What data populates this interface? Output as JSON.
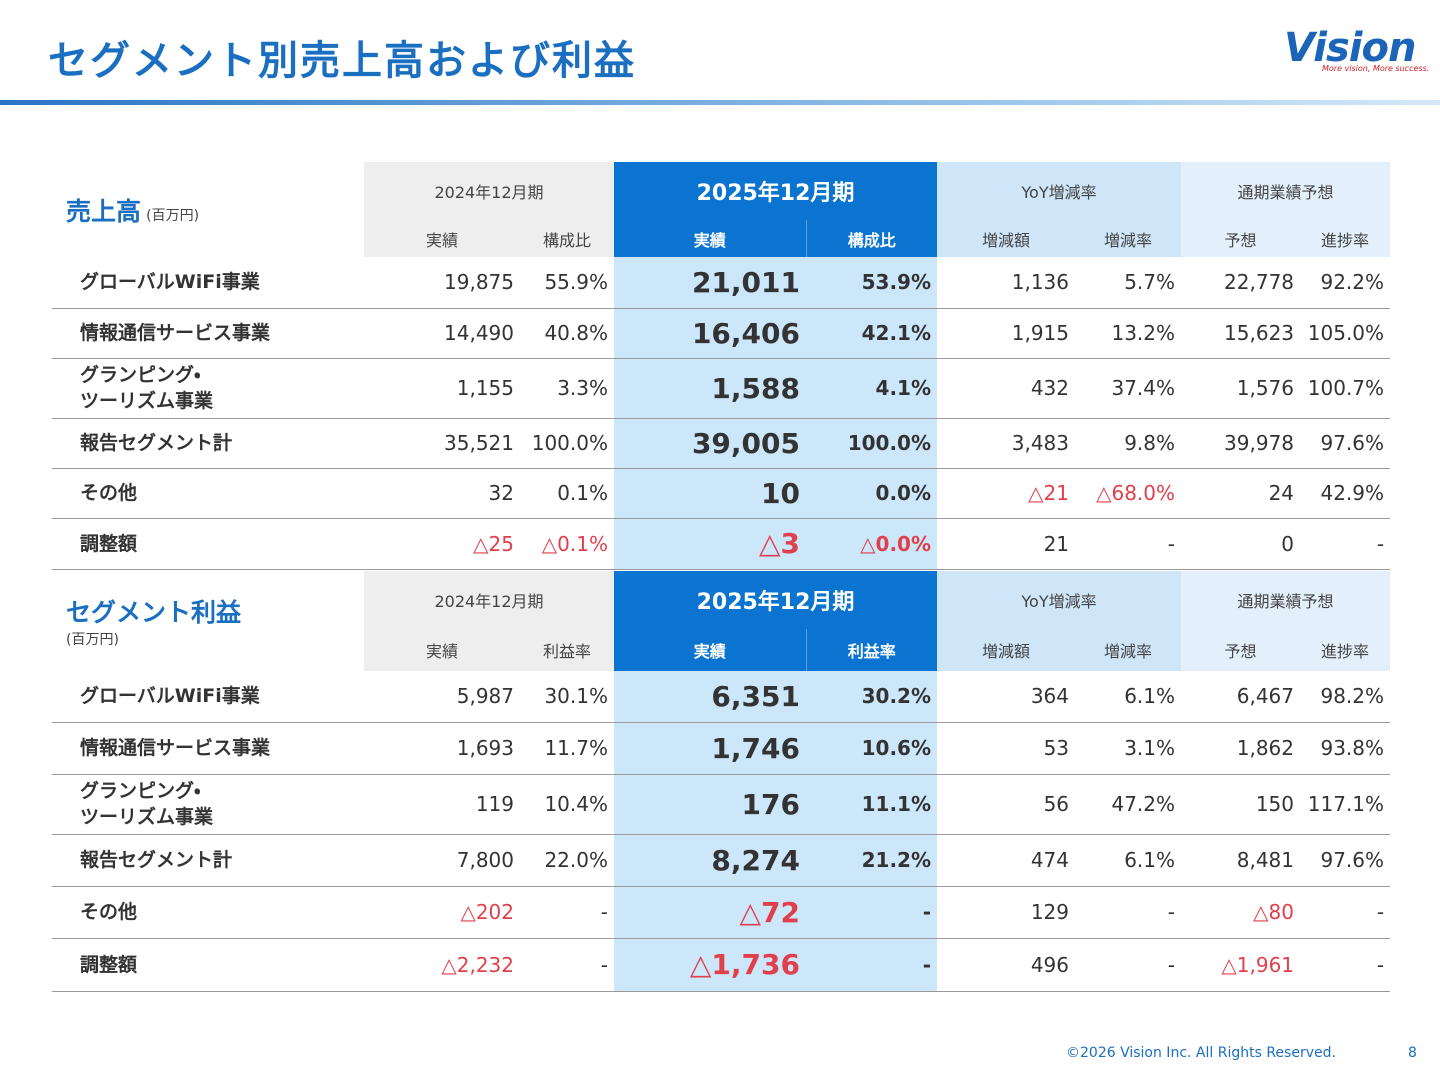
{
  "header": {
    "title": "セグメント別売上高および利益",
    "logo": {
      "text": "Vision",
      "tagline": "More vision, More success."
    }
  },
  "tables": [
    {
      "title": "売上高",
      "unit": "(百万円)",
      "periods": [
        "2024年12月期",
        "2025年12月期",
        "YoY増減率",
        "通期業績予想"
      ],
      "columns": [
        "実績",
        "構成比",
        "実績",
        "構成比",
        "増減額",
        "増減率",
        "予想",
        "進捗率"
      ],
      "rows": [
        {
          "label": "グローバルWiFi事業",
          "cells": [
            "19,875",
            "55.9%",
            "21,011",
            "53.9%",
            "1,136",
            "5.7%",
            "22,778",
            "92.2%"
          ]
        },
        {
          "label": "情報通信サービス事業",
          "cells": [
            "14,490",
            "40.8%",
            "16,406",
            "42.1%",
            "1,915",
            "13.2%",
            "15,623",
            "105.0%"
          ]
        },
        {
          "label": "グランピング・\nツーリズム事業",
          "cells": [
            "1,155",
            "3.3%",
            "1,588",
            "4.1%",
            "432",
            "37.4%",
            "1,576",
            "100.7%"
          ]
        },
        {
          "label": "報告セグメント計",
          "cells": [
            "35,521",
            "100.0%",
            "39,005",
            "100.0%",
            "3,483",
            "9.8%",
            "39,978",
            "97.6%"
          ]
        },
        {
          "label": "その他",
          "cells": [
            "32",
            "0.1%",
            "10",
            "0.0%",
            "△21",
            "△68.0%",
            "24",
            "42.9%"
          ]
        },
        {
          "label": "調整額",
          "cells": [
            "△25",
            "△0.1%",
            "△3",
            "△0.0%",
            "21",
            "-",
            "0",
            "-"
          ]
        }
      ]
    },
    {
      "title": "セグメント利益",
      "unit": "(百万円)",
      "periods": [
        "2024年12月期",
        "2025年12月期",
        "YoY増減率",
        "通期業績予想"
      ],
      "columns": [
        "実績",
        "利益率",
        "実績",
        "利益率",
        "増減額",
        "増減率",
        "予想",
        "進捗率"
      ],
      "rows": [
        {
          "label": "グローバルWiFi事業",
          "cells": [
            "5,987",
            "30.1%",
            "6,351",
            "30.2%",
            "364",
            "6.1%",
            "6,467",
            "98.2%"
          ]
        },
        {
          "label": "情報通信サービス事業",
          "cells": [
            "1,693",
            "11.7%",
            "1,746",
            "10.6%",
            "53",
            "3.1%",
            "1,862",
            "93.8%"
          ]
        },
        {
          "label": "グランピング・\nツーリズム事業",
          "cells": [
            "119",
            "10.4%",
            "176",
            "11.1%",
            "56",
            "47.2%",
            "150",
            "117.1%"
          ]
        },
        {
          "label": "報告セグメント計",
          "cells": [
            "7,800",
            "22.0%",
            "8,274",
            "21.2%",
            "474",
            "6.1%",
            "8,481",
            "97.6%"
          ]
        },
        {
          "label": "その他",
          "cells": [
            "△202",
            "-",
            "△72",
            "-",
            "129",
            "-",
            "△80",
            "-"
          ]
        },
        {
          "label": "調整額",
          "cells": [
            "△2,232",
            "-",
            "△1,736",
            "-",
            "496",
            "-",
            "△1,961",
            "-"
          ]
        }
      ]
    }
  ],
  "footer": {
    "copyright": "©2026 Vision Inc. All Rights Reserved.",
    "page": "8"
  }
}
